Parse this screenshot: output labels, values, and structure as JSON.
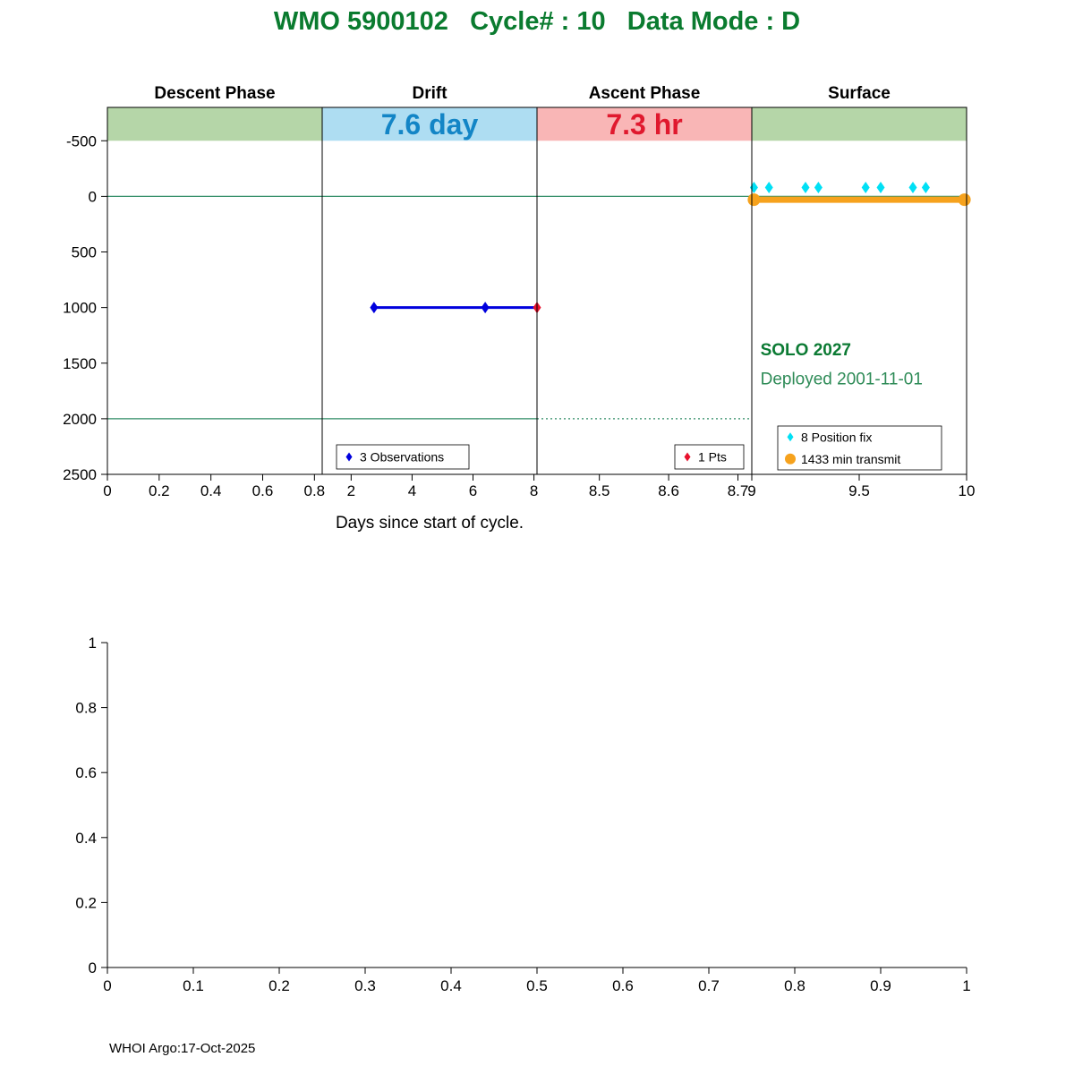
{
  "title": {
    "text": "WMO 5900102   Cycle# : 10   Data Mode : D"
  },
  "footer": {
    "text": "WHOI Argo:17-Oct-2025"
  },
  "colors": {
    "title_green": "#0a7b2f",
    "band_green": "#b5d6a8",
    "band_blue": "#aeddf2",
    "band_red": "#f9b6b6",
    "drift_days_blue": "#1385c6",
    "ascent_hr_red": "#e0192e",
    "reference_teal": "#2e8b64",
    "observation_blue": "#0000dd",
    "point_red": "#e8112d",
    "fix_cyan": "#00e0f5",
    "transmit_orange": "#f6a21d",
    "annotation_green_bold": "#0b7a33",
    "annotation_green": "#2e8b57",
    "axis_black": "#000000"
  },
  "chart_data": [
    {
      "type": "line",
      "title": "",
      "xlabel": "Days since start of cycle.",
      "ylabel": "",
      "ylim": [
        -800,
        2500
      ],
      "y_inverted": true,
      "y_ticks": [
        -500,
        0,
        500,
        1000,
        1500,
        2000,
        2500
      ],
      "grid": false,
      "panels": [
        {
          "header": "Descent Phase",
          "xlim": [
            0,
            0.83
          ],
          "x_ticks": [
            0,
            0.2,
            0.4,
            0.6,
            0.8
          ],
          "band_color_key": "band_green",
          "band_label": "",
          "band_label_color_key": ""
        },
        {
          "header": "Drift",
          "xlim": [
            1.05,
            8.1
          ],
          "x_ticks": [
            2,
            4,
            6,
            8
          ],
          "band_color_key": "band_blue",
          "band_label": "7.6 day",
          "band_label_color_key": "drift_days_blue"
        },
        {
          "header": "Ascent Phase",
          "xlim": [
            8.41,
            8.72
          ],
          "x_ticks": [
            8.5,
            8.6,
            8.7
          ],
          "band_color_key": "band_red",
          "band_label": "7.3 hr",
          "band_label_color_key": "ascent_hr_red"
        },
        {
          "header": "Surface",
          "xlim": [
            9,
            10
          ],
          "x_ticks": [
            9,
            9.5,
            10
          ],
          "band_color_key": "band_green",
          "band_label": "",
          "band_label_color_key": ""
        }
      ],
      "reference_lines": [
        {
          "y": 0,
          "panels": [
            0,
            1,
            2,
            3
          ],
          "style": "solid"
        },
        {
          "y": 2000,
          "panels": [
            0,
            1
          ],
          "style": "solid"
        },
        {
          "y": 2000,
          "panels": [
            2
          ],
          "style": "dotted"
        }
      ],
      "series": [
        {
          "name": "drift-observations",
          "panel": 1,
          "kind": "line",
          "color_key": "observation_blue",
          "x": [
            2.75,
            6.4,
            8.1
          ],
          "y": [
            1000,
            1000,
            1000
          ],
          "marker": "diamond",
          "marker_x": [
            2.75,
            6.4
          ],
          "label": "3 Observations"
        },
        {
          "name": "ascent-point",
          "panel": 1,
          "kind": "scatter",
          "color_key": "point_red",
          "x": [
            8.1
          ],
          "y": [
            1000
          ],
          "marker": "diamond",
          "label": "1 Pts"
        },
        {
          "name": "surface-transmit",
          "panel": 3,
          "kind": "line",
          "color_key": "transmit_orange",
          "x": [
            9.01,
            9.99
          ],
          "y": [
            30,
            30
          ],
          "marker": "circle",
          "marker_x": [
            9.01,
            9.99
          ],
          "label": "1433 min transmit"
        },
        {
          "name": "position-fixes",
          "panel": 3,
          "kind": "scatter",
          "color_key": "fix_cyan",
          "x": [
            9.01,
            9.08,
            9.25,
            9.31,
            9.53,
            9.6,
            9.75,
            9.81
          ],
          "y": [
            -80,
            -80,
            -80,
            -80,
            -80,
            -80,
            -80,
            -80
          ],
          "marker": "diamond",
          "label": "8 Position fix"
        }
      ],
      "legends": [
        {
          "panel": 1,
          "position": "bottom-center",
          "items": [
            {
              "marker": "diamond",
              "color_key": "observation_blue",
              "label": "3 Observations"
            }
          ]
        },
        {
          "panel": 2,
          "position": "bottom-right",
          "items": [
            {
              "marker": "diamond",
              "color_key": "point_red",
              "label": "1 Pts"
            }
          ]
        },
        {
          "panel": 3,
          "position": "bottom-right",
          "items": [
            {
              "marker": "diamond",
              "color_key": "fix_cyan",
              "label": "8 Position fix"
            },
            {
              "marker": "circle",
              "color_key": "transmit_orange",
              "label": "1433 min transmit"
            }
          ]
        }
      ],
      "annotations": [
        {
          "text": "SOLO 2027",
          "panel": 3,
          "x": 9.04,
          "y": 1430,
          "bold": true,
          "color_key": "annotation_green_bold"
        },
        {
          "text": "Deployed 2001-11-01",
          "panel": 3,
          "x": 9.04,
          "y": 1690,
          "bold": false,
          "color_key": "annotation_green"
        }
      ]
    },
    {
      "type": "line",
      "title": "",
      "xlabel": "",
      "ylabel": "",
      "xlim": [
        0,
        1
      ],
      "ylim": [
        0,
        1
      ],
      "x_ticks": [
        0,
        0.1,
        0.2,
        0.3,
        0.4,
        0.5,
        0.6,
        0.7,
        0.8,
        0.9,
        1
      ],
      "y_ticks": [
        0,
        0.2,
        0.4,
        0.6,
        0.8,
        1
      ],
      "grid": false,
      "series": []
    }
  ]
}
